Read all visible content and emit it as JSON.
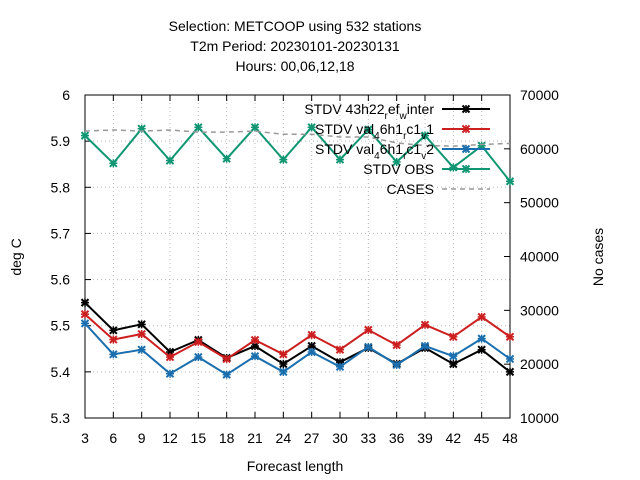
{
  "chart_data": {
    "type": "line",
    "title": [
      "Selection: METCOOP using   532 stations",
      "T2m   Period: 20230101-20230131",
      "Hours: 00,06,12,18"
    ],
    "xlabel": "Forecast length",
    "ylabel": "deg C",
    "y2label": "No cases",
    "x": [
      3,
      6,
      9,
      12,
      15,
      18,
      21,
      24,
      27,
      30,
      33,
      36,
      39,
      42,
      45,
      48
    ],
    "xticks": [
      "3",
      "6",
      "9",
      "12",
      "15",
      "18",
      "21",
      "24",
      "27",
      "30",
      "33",
      "36",
      "39",
      "42",
      "45",
      "48"
    ],
    "ylim": [
      5.3,
      6.0
    ],
    "yticks": [
      "5.3",
      "5.4",
      "5.5",
      "5.6",
      "5.7",
      "5.8",
      "5.9",
      "6"
    ],
    "y2lim": [
      10000,
      70000
    ],
    "y2ticks": [
      "10000",
      "20000",
      "30000",
      "40000",
      "50000",
      "60000",
      "70000"
    ],
    "grid": true,
    "legend_position": "top-right",
    "series": [
      {
        "name": "STDV 43h22_ref_winter",
        "legend": {
          "main": "STDV 43h22",
          "sub1": "r",
          "mid": "ef",
          "sub2": "w",
          "tail": "inter"
        },
        "color": "#000000",
        "marker": "x",
        "axis": "y",
        "values": [
          5.55,
          5.49,
          5.503,
          5.443,
          5.469,
          5.43,
          5.456,
          5.417,
          5.456,
          5.421,
          5.452,
          5.417,
          5.452,
          5.417,
          5.448,
          5.4
        ]
      },
      {
        "name": "STDV val_46h1_rc1_v1",
        "legend": {
          "main": "STDV val",
          "sub1": "4",
          "mid": "6h1",
          "sub2": "r",
          "mid2": "c1",
          "sub3": "v",
          "tail": "1"
        },
        "color": "#cc1f1f",
        "marker": "x",
        "axis": "y",
        "values": [
          5.525,
          5.47,
          5.482,
          5.432,
          5.465,
          5.428,
          5.469,
          5.438,
          5.48,
          5.448,
          5.491,
          5.458,
          5.502,
          5.476,
          5.519,
          5.476
        ]
      },
      {
        "name": "STDV val_46h1_rc1_v2",
        "legend": {
          "main": "STDV val",
          "sub1": "4",
          "mid": "6h1",
          "sub2": "r",
          "mid2": "c1",
          "sub3": "v",
          "tail": "2"
        },
        "color": "#1b6fae",
        "marker": "x",
        "axis": "y",
        "values": [
          5.505,
          5.438,
          5.448,
          5.396,
          5.432,
          5.394,
          5.434,
          5.4,
          5.443,
          5.411,
          5.454,
          5.415,
          5.456,
          5.434,
          5.472,
          5.428
        ]
      },
      {
        "name": "STDV OBS",
        "legend": {
          "main": "STDV OBS"
        },
        "color": "#119673",
        "marker": "x",
        "axis": "y",
        "values": [
          5.912,
          5.852,
          5.927,
          5.858,
          5.93,
          5.862,
          5.93,
          5.86,
          5.93,
          5.86,
          5.925,
          5.855,
          5.912,
          5.843,
          5.89,
          5.813
        ]
      },
      {
        "name": "CASES",
        "legend": {
          "main": "CASES"
        },
        "color": "#999999",
        "marker": "none",
        "dashed": true,
        "axis": "y2",
        "values": [
          63300,
          63500,
          63300,
          63500,
          63100,
          63100,
          63300,
          62700,
          62700,
          62200,
          62200,
          61100,
          60600,
          60500,
          60800,
          61000
        ]
      }
    ]
  }
}
